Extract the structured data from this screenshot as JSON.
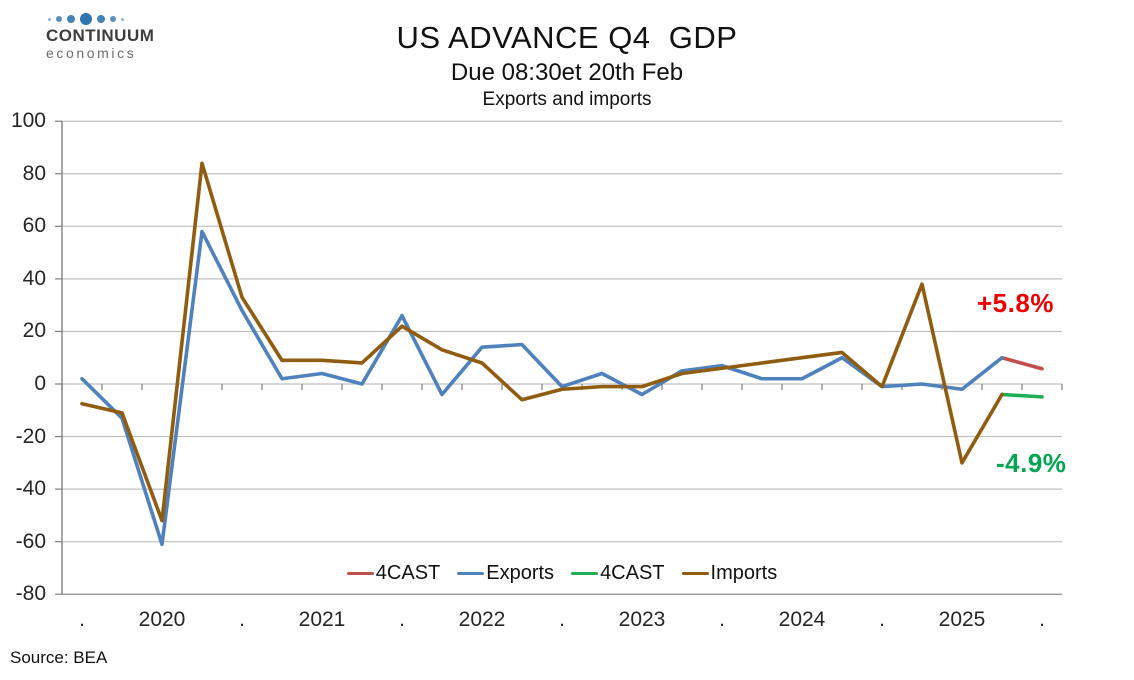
{
  "logo": {
    "line1": "CONTINUUM",
    "line2": "economics",
    "dot_color": "#2e76ad",
    "dot_sizes": [
      3,
      6,
      8,
      12,
      8,
      6,
      3
    ],
    "dot_opacity": [
      0.55,
      0.8,
      0.9,
      1,
      0.9,
      0.8,
      0.55
    ]
  },
  "header": {
    "title": "US ADVANCE Q4  GDP",
    "subtitle": "Due 08:30et 20th Feb",
    "chart_label": "Exports and imports"
  },
  "source": "Source: BEA",
  "chart_data": {
    "type": "line",
    "title": "US ADVANCE Q4  GDP",
    "subtitle": "Due 08:30et 20th Feb",
    "panel_label": "Exports and imports",
    "x_note": "25 quarterly categories from 2019 Q4 to 2025 Q4 (forecast); tick label shown under every second category",
    "x_tick_labels": [
      ".",
      "2020",
      ".",
      "2021",
      ".",
      "2022",
      ".",
      "2023",
      ".",
      "2024",
      ".",
      "2025",
      "."
    ],
    "y_ticks": [
      100,
      80,
      60,
      40,
      20,
      0,
      -20,
      -40,
      -60,
      -80
    ],
    "ylim": [
      -80,
      100
    ],
    "grid": "horizontal",
    "legend_position": "bottom-inside",
    "series": [
      {
        "name": "4CAST",
        "role": "exports-forecast",
        "color": "#c0504d",
        "values": [
          null,
          null,
          null,
          null,
          null,
          null,
          null,
          null,
          null,
          null,
          null,
          null,
          null,
          null,
          null,
          null,
          null,
          null,
          null,
          null,
          null,
          null,
          null,
          10,
          5.8
        ]
      },
      {
        "name": "Exports",
        "role": "exports-actual",
        "color": "#4f81bd",
        "values": [
          2,
          -13,
          -61,
          58,
          28,
          2,
          4,
          0,
          26,
          -4,
          14,
          15,
          -1,
          4,
          -4,
          5,
          7,
          2,
          2,
          10,
          -1,
          0,
          -2,
          10,
          null
        ]
      },
      {
        "name": "4CAST",
        "role": "imports-forecast",
        "color": "#1fad55",
        "values": [
          null,
          null,
          null,
          null,
          null,
          null,
          null,
          null,
          null,
          null,
          null,
          null,
          null,
          null,
          null,
          null,
          null,
          null,
          null,
          null,
          null,
          null,
          null,
          -4,
          -4.9
        ]
      },
      {
        "name": "Imports",
        "role": "imports-actual",
        "color": "#8f5c10",
        "values": [
          -7.5,
          -11,
          -52,
          84,
          33,
          9,
          9,
          8,
          22,
          13,
          8,
          -6,
          -2,
          -1,
          -1,
          4,
          6,
          8,
          10,
          12,
          -1,
          38,
          -30,
          -4,
          null
        ]
      }
    ],
    "legend": {
      "items": [
        {
          "label": "4CAST",
          "color": "#c0504d"
        },
        {
          "label": "Exports",
          "color": "#4f81bd"
        },
        {
          "label": "4CAST",
          "color": "#1fad55"
        },
        {
          "label": "Imports",
          "color": "#8f5c10"
        }
      ]
    },
    "annotations": [
      {
        "text": "+5.8%",
        "color": "#ee0000",
        "meaning": "exports forecast"
      },
      {
        "text": "-4.9%",
        "color": "#00a650",
        "meaning": "imports forecast"
      }
    ]
  }
}
